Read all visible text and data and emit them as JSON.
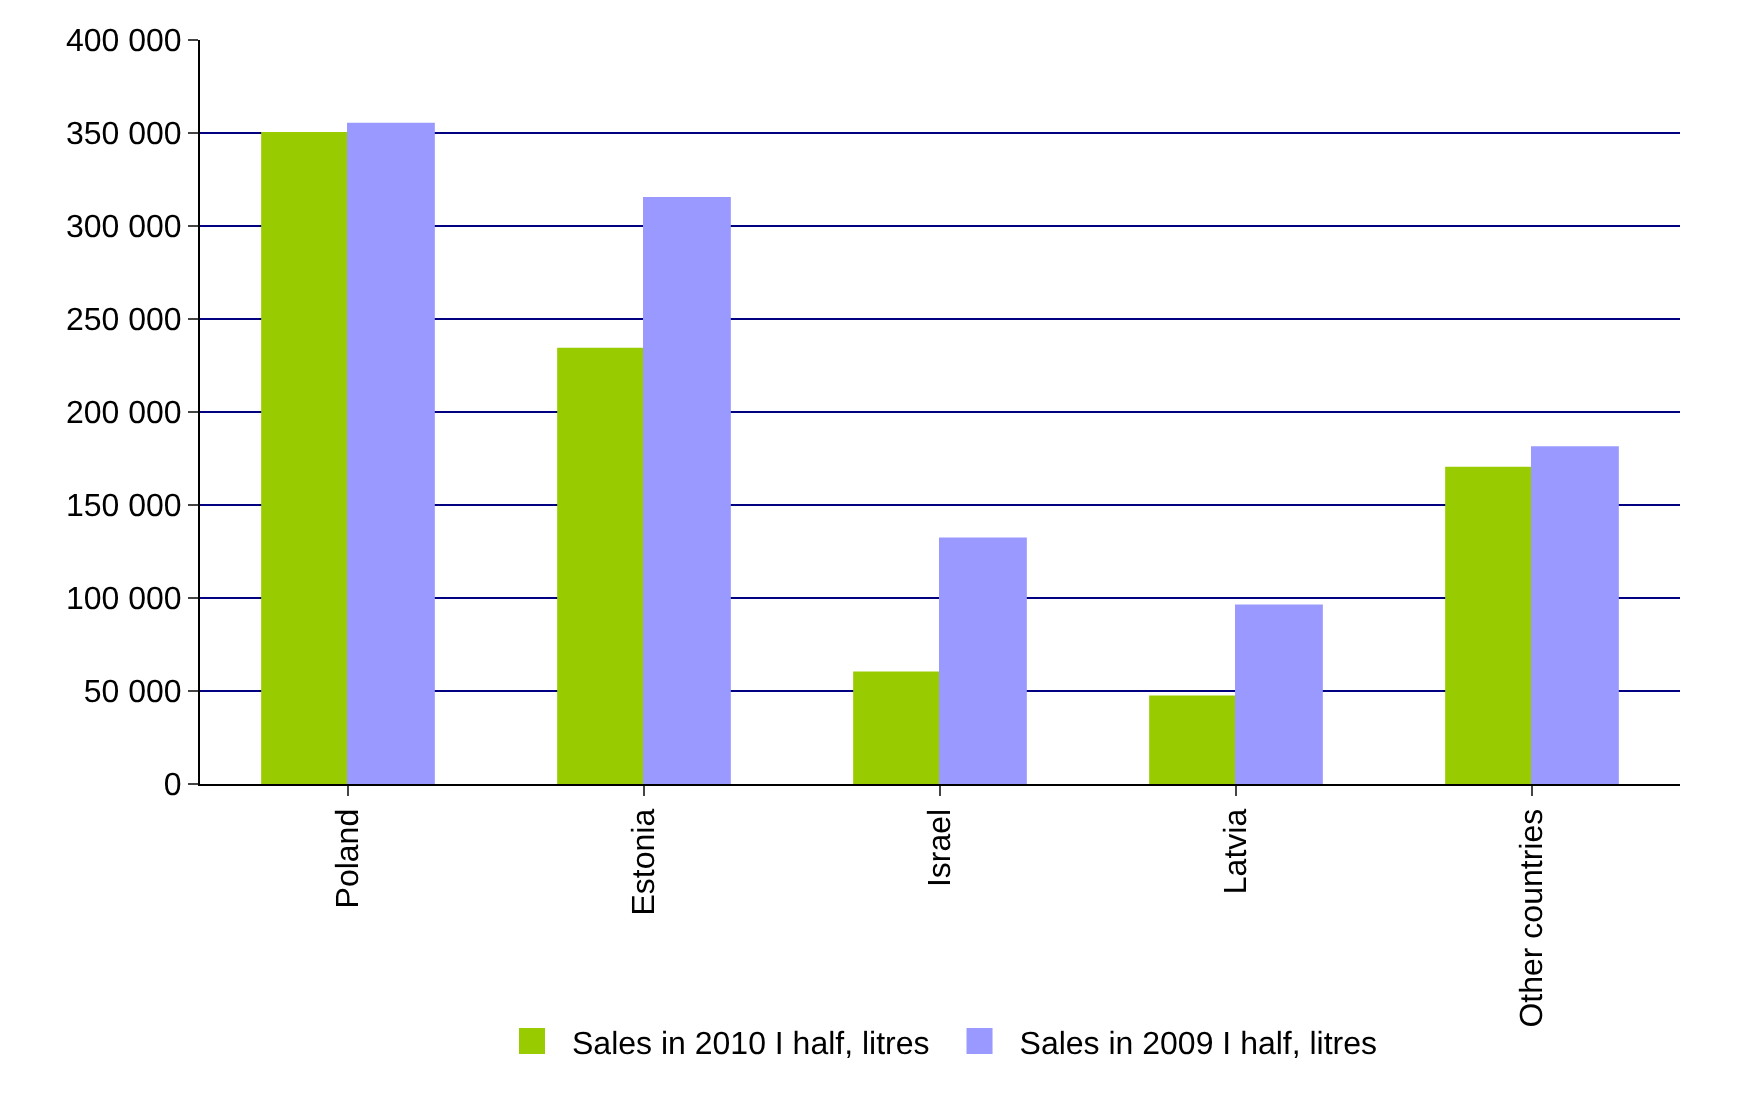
{
  "chart_data": {
    "type": "bar",
    "categories": [
      "Poland",
      "Estonia",
      "Israel",
      "Latvia",
      "Other countries"
    ],
    "series": [
      {
        "name": "Sales in 2010 I half, litres",
        "color": "#99cc00",
        "values": [
          350000,
          234000,
          60000,
          47000,
          170000
        ]
      },
      {
        "name": "Sales in 2009 I half, litres",
        "color": "#9999ff",
        "values": [
          355000,
          315000,
          132000,
          96000,
          181000
        ]
      }
    ],
    "ylim": [
      0,
      400000
    ],
    "yticks": [
      0,
      {
        "value": 50000,
        "label": "50 000"
      },
      {
        "value": 100000,
        "label": "100 000"
      },
      {
        "value": 150000,
        "label": "150 000"
      },
      {
        "value": 200000,
        "label": "200 000"
      },
      {
        "value": 250000,
        "label": "250 000"
      },
      {
        "value": 300000,
        "label": "300 000"
      },
      {
        "value": 350000,
        "label": "350 000"
      },
      {
        "value": 400000,
        "label": "400 000"
      }
    ],
    "grid": "y",
    "legend": "bottom"
  }
}
